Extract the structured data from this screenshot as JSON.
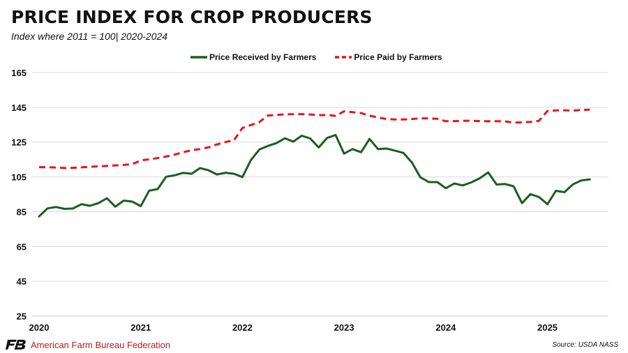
{
  "header": {
    "title": "PRICE INDEX FOR CROP PRODUCERS",
    "subtitle": "Index where 2011 = 100| 2020-2024"
  },
  "footer": {
    "organization": "American Farm Bureau Federation",
    "logo_text": "FB",
    "source": "Source: USDA NASS"
  },
  "colors": {
    "received": "#1a5e1e",
    "paid": "#e8141c",
    "grid": "#d9d9d9",
    "brand_red": "#b01e23"
  },
  "chart_data": {
    "type": "line",
    "ylim": [
      25,
      165
    ],
    "yticks": [
      25,
      45,
      65,
      85,
      105,
      125,
      145,
      165
    ],
    "xlim": [
      2020.0,
      2025.6
    ],
    "xticks": [
      {
        "value": 2020,
        "label": "2020"
      },
      {
        "value": 2021,
        "label": "2021"
      },
      {
        "value": 2022,
        "label": "2022"
      },
      {
        "value": 2023,
        "label": "2023"
      },
      {
        "value": 2024,
        "label": "2024"
      },
      {
        "value": 2025,
        "label": "2025"
      }
    ],
    "legend_position": "top-center",
    "grid": true,
    "series": [
      {
        "name": "Price Received by Farmers",
        "style": "solid",
        "color": "#1a5e1e",
        "points": [
          [
            2020.0,
            82.3
          ],
          [
            2020.083,
            86.9
          ],
          [
            2020.167,
            87.7
          ],
          [
            2020.25,
            86.6
          ],
          [
            2020.333,
            86.8
          ],
          [
            2020.417,
            89.3
          ],
          [
            2020.5,
            88.4
          ],
          [
            2020.583,
            89.9
          ],
          [
            2020.667,
            92.7
          ],
          [
            2020.75,
            87.9
          ],
          [
            2020.833,
            91.4
          ],
          [
            2020.917,
            90.8
          ],
          [
            2021.0,
            88.2
          ],
          [
            2021.083,
            97.1
          ],
          [
            2021.167,
            98.0
          ],
          [
            2021.25,
            105.1
          ],
          [
            2021.333,
            105.9
          ],
          [
            2021.417,
            107.3
          ],
          [
            2021.5,
            106.8
          ],
          [
            2021.583,
            110.1
          ],
          [
            2021.667,
            108.8
          ],
          [
            2021.75,
            106.4
          ],
          [
            2021.833,
            107.4
          ],
          [
            2021.917,
            106.8
          ],
          [
            2022.0,
            104.9
          ],
          [
            2022.083,
            114.6
          ],
          [
            2022.167,
            120.8
          ],
          [
            2022.25,
            122.8
          ],
          [
            2022.333,
            124.4
          ],
          [
            2022.417,
            127.2
          ],
          [
            2022.5,
            125.3
          ],
          [
            2022.583,
            128.7
          ],
          [
            2022.667,
            127.1
          ],
          [
            2022.75,
            121.9
          ],
          [
            2022.833,
            127.4
          ],
          [
            2022.917,
            129.1
          ],
          [
            2023.0,
            118.4
          ],
          [
            2023.083,
            121.0
          ],
          [
            2023.167,
            119.2
          ],
          [
            2023.25,
            126.8
          ],
          [
            2023.333,
            121.0
          ],
          [
            2023.417,
            121.3
          ],
          [
            2023.5,
            120.1
          ],
          [
            2023.583,
            118.8
          ],
          [
            2023.667,
            113.3
          ],
          [
            2023.75,
            104.8
          ],
          [
            2023.833,
            102.0
          ],
          [
            2023.917,
            102.0
          ],
          [
            2024.0,
            98.5
          ],
          [
            2024.083,
            101.2
          ],
          [
            2024.167,
            100.1
          ],
          [
            2024.25,
            101.8
          ],
          [
            2024.333,
            104.2
          ],
          [
            2024.417,
            107.6
          ],
          [
            2024.5,
            100.6
          ],
          [
            2024.583,
            100.9
          ],
          [
            2024.667,
            99.6
          ],
          [
            2024.75,
            89.9
          ],
          [
            2024.833,
            95.1
          ],
          [
            2024.917,
            93.4
          ],
          [
            2025.0,
            89.3
          ],
          [
            2025.083,
            97.0
          ],
          [
            2025.167,
            96.2
          ],
          [
            2025.25,
            100.7
          ],
          [
            2025.333,
            103.0
          ],
          [
            2025.417,
            103.6
          ]
        ]
      },
      {
        "name": "Price Paid by Farmers",
        "style": "dashed",
        "color": "#e8141c",
        "points": [
          [
            2020.0,
            110.6
          ],
          [
            2020.083,
            110.6
          ],
          [
            2020.167,
            110.4
          ],
          [
            2020.25,
            110.1
          ],
          [
            2020.333,
            110.2
          ],
          [
            2020.417,
            110.5
          ],
          [
            2020.5,
            110.8
          ],
          [
            2020.583,
            111.1
          ],
          [
            2020.667,
            111.3
          ],
          [
            2020.75,
            111.6
          ],
          [
            2020.833,
            111.9
          ],
          [
            2020.917,
            112.3
          ],
          [
            2021.0,
            114.5
          ],
          [
            2021.083,
            115.1
          ],
          [
            2021.167,
            115.8
          ],
          [
            2021.25,
            116.7
          ],
          [
            2021.333,
            117.8
          ],
          [
            2021.417,
            119.2
          ],
          [
            2021.5,
            120.3
          ],
          [
            2021.583,
            121.0
          ],
          [
            2021.667,
            122.0
          ],
          [
            2021.75,
            123.7
          ],
          [
            2021.833,
            125.0
          ],
          [
            2021.917,
            126.1
          ],
          [
            2022.0,
            133.1
          ],
          [
            2022.083,
            134.8
          ],
          [
            2022.167,
            136.5
          ],
          [
            2022.25,
            140.3
          ],
          [
            2022.333,
            140.6
          ],
          [
            2022.417,
            141.0
          ],
          [
            2022.5,
            141.0
          ],
          [
            2022.583,
            141.1
          ],
          [
            2022.667,
            140.9
          ],
          [
            2022.75,
            140.5
          ],
          [
            2022.833,
            140.6
          ],
          [
            2022.917,
            140.1
          ],
          [
            2023.0,
            142.7
          ],
          [
            2023.083,
            142.2
          ],
          [
            2023.167,
            141.7
          ],
          [
            2023.25,
            140.2
          ],
          [
            2023.333,
            139.2
          ],
          [
            2023.417,
            138.3
          ],
          [
            2023.5,
            138.0
          ],
          [
            2023.583,
            138.0
          ],
          [
            2023.667,
            138.3
          ],
          [
            2023.75,
            138.7
          ],
          [
            2023.833,
            138.6
          ],
          [
            2023.917,
            138.4
          ],
          [
            2024.0,
            137.0
          ],
          [
            2024.083,
            137.1
          ],
          [
            2024.167,
            137.3
          ],
          [
            2024.25,
            137.3
          ],
          [
            2024.333,
            137.1
          ],
          [
            2024.417,
            137.0
          ],
          [
            2024.5,
            137.0
          ],
          [
            2024.583,
            136.9
          ],
          [
            2024.667,
            136.2
          ],
          [
            2024.75,
            136.4
          ],
          [
            2024.833,
            136.6
          ],
          [
            2024.917,
            137.3
          ],
          [
            2025.0,
            142.9
          ],
          [
            2025.083,
            143.2
          ],
          [
            2025.167,
            143.3
          ],
          [
            2025.25,
            143.1
          ],
          [
            2025.333,
            143.4
          ],
          [
            2025.417,
            143.7
          ]
        ]
      }
    ]
  }
}
